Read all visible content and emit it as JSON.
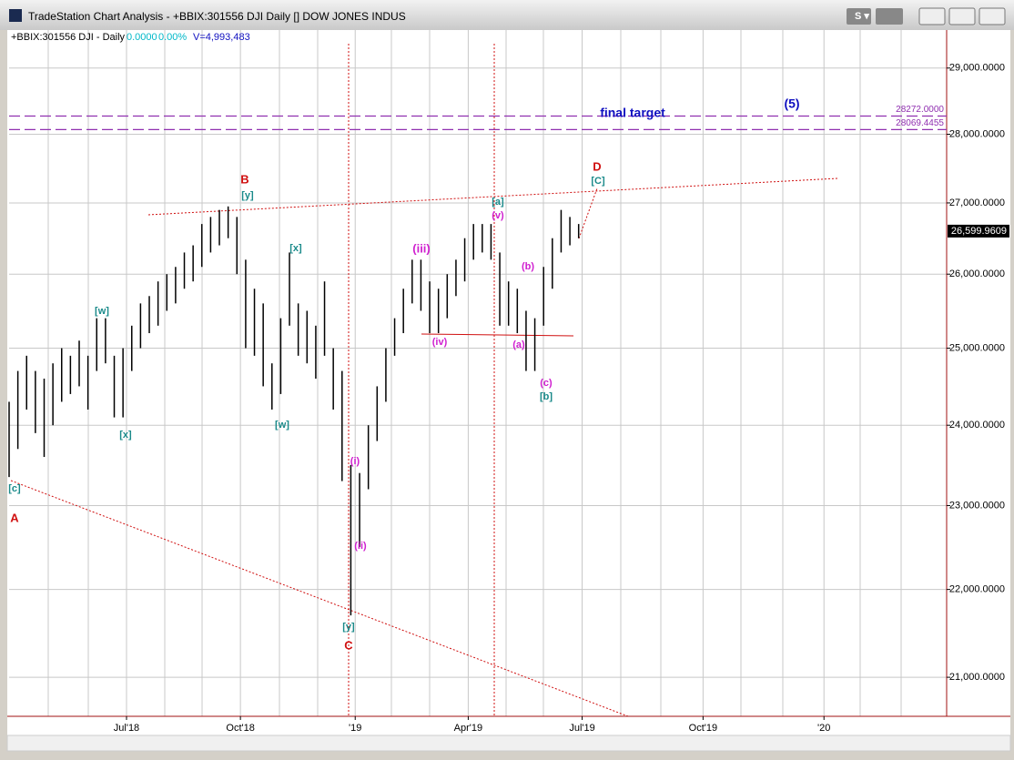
{
  "window": {
    "title": "TradeStation Chart Analysis - +BBIX:301556 DJI Daily [] DOW JONES INDUS"
  },
  "chart_data": {
    "type": "ohlc",
    "symbol": "+BBIX:301556 DJI - Daily",
    "change": "0.0000",
    "change_pct": "0.00%",
    "volume": "V=4,993,483",
    "color": "#000000",
    "log_scale": true,
    "grid": true,
    "high": [
      24300,
      24700,
      24900,
      24700,
      24600,
      24800,
      25000,
      24900,
      25100,
      24900,
      25400,
      25400,
      24900,
      25000,
      25300,
      25600,
      25700,
      25900,
      26000,
      26100,
      26300,
      26400,
      26700,
      26800,
      26900,
      26950,
      26800,
      26200,
      25800,
      25600,
      24800,
      25400,
      26300,
      25600,
      25500,
      25300,
      25900,
      25000,
      24700,
      23500,
      23400,
      24000,
      24500,
      25000,
      25400,
      25800,
      26200,
      26200,
      25900,
      25800,
      26000,
      26200,
      26500,
      26700,
      26700,
      26700,
      26300,
      25900,
      25800,
      25500,
      25400,
      26100,
      26500,
      26900,
      26800,
      26700
    ],
    "low": [
      23350,
      23700,
      24200,
      23900,
      23600,
      24000,
      24300,
      24400,
      24500,
      24200,
      24700,
      24800,
      24100,
      24100,
      24700,
      25000,
      25200,
      25300,
      25500,
      25600,
      25800,
      25900,
      26100,
      26300,
      26400,
      26500,
      26000,
      25000,
      24900,
      24500,
      24200,
      24400,
      25300,
      24900,
      24800,
      24600,
      24900,
      24200,
      23300,
      21700,
      22500,
      23200,
      23800,
      24300,
      24900,
      25200,
      25600,
      25500,
      25200,
      25200,
      25400,
      25700,
      25900,
      26200,
      26300,
      26200,
      25300,
      25300,
      25200,
      24700,
      24700,
      25300,
      25800,
      26300,
      26400,
      26500
    ],
    "xlim": [
      0,
      107
    ],
    "xticks": [
      {
        "value": 13.4,
        "label": "Jul'18"
      },
      {
        "value": 26.4,
        "label": "Oct'18"
      },
      {
        "value": 39.5,
        "label": "'19"
      },
      {
        "value": 52.4,
        "label": "Apr'19"
      },
      {
        "value": 65.4,
        "label": "Jul'19"
      },
      {
        "value": 79.2,
        "label": "Oct'19"
      },
      {
        "value": 93.0,
        "label": "'20"
      }
    ],
    "ylim": [
      20570,
      29590
    ],
    "yticks": [
      {
        "value": 21000,
        "label": "21,000.0000"
      },
      {
        "value": 22000,
        "label": "22,000.0000"
      },
      {
        "value": 23000,
        "label": "23,000.0000"
      },
      {
        "value": 24000,
        "label": "24,000.0000"
      },
      {
        "value": 25000,
        "label": "25,000.0000"
      },
      {
        "value": 26000,
        "label": "26,000.0000"
      },
      {
        "value": 27000,
        "label": "27,000.0000"
      },
      {
        "value": 28000,
        "label": "28,000.0000"
      },
      {
        "value": 29000,
        "label": "29,000.0000"
      }
    ],
    "levels": [
      {
        "value": 28272,
        "label": "28272.0000"
      },
      {
        "value": 28069.4455,
        "label": "28069.4455"
      }
    ],
    "level_color": "#9030b0",
    "last_price": {
      "value": 26599.9609,
      "label": "26,599.9609"
    },
    "annotations": [
      {
        "text": "B",
        "color": "#d01010"
      },
      {
        "text": "[y]",
        "color": "#1a8a8a"
      },
      {
        "text": "[w]",
        "color": "#1a8a8a"
      },
      {
        "text": "[x]",
        "color": "#1a8a8a"
      },
      {
        "text": "[c]",
        "color": "#1a8a8a"
      },
      {
        "text": "A",
        "color": "#d01010"
      },
      {
        "text": "[x]",
        "color": "#1a8a8a"
      },
      {
        "text": "[w]",
        "color": "#1a8a8a"
      },
      {
        "text": "(i)",
        "color": "#d020d0"
      },
      {
        "text": "(ii)",
        "color": "#d020d0"
      },
      {
        "text": "[y]",
        "color": "#1a8a8a"
      },
      {
        "text": "C",
        "color": "#d01010"
      },
      {
        "text": "(iii)",
        "color": "#d020d0"
      },
      {
        "text": "(iv)",
        "color": "#d020d0"
      },
      {
        "text": "[a]",
        "color": "#1a8a8a"
      },
      {
        "text": "(v)",
        "color": "#d020d0"
      },
      {
        "text": "(b)",
        "color": "#d020d0"
      },
      {
        "text": "(a)",
        "color": "#d020d0"
      },
      {
        "text": "(c)",
        "color": "#d020d0"
      },
      {
        "text": "[b]",
        "color": "#1a8a8a"
      },
      {
        "text": "D",
        "color": "#d01010"
      },
      {
        "text": "[C]",
        "color": "#1a8a8a"
      },
      {
        "text": "final target",
        "color": "#1010c0"
      },
      {
        "text": "(5)",
        "color": "#1010c0"
      }
    ]
  }
}
